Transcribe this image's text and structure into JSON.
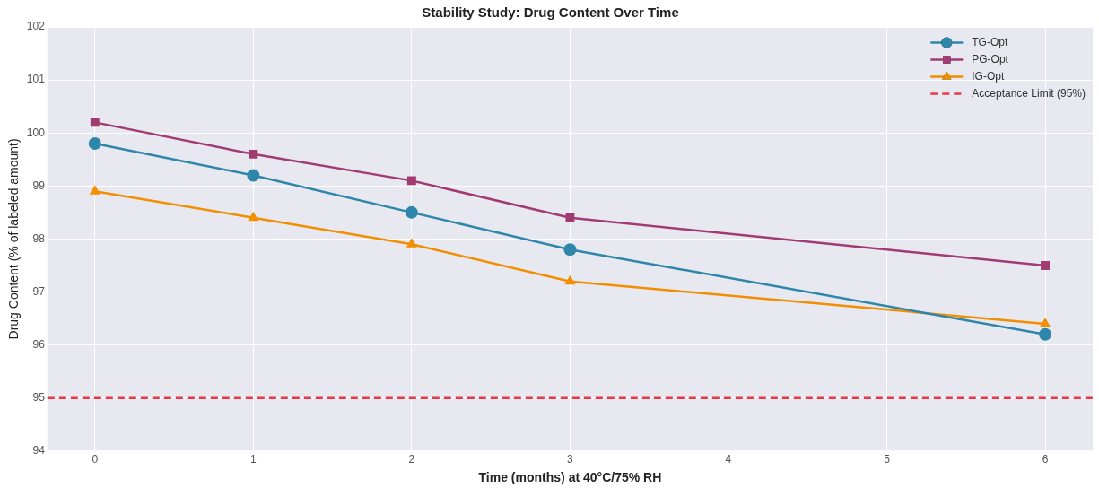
{
  "chart_data": {
    "type": "line",
    "title": "Stability Study: Drug Content Over Time",
    "xlabel": "Time (months) at 40°C/75% RH",
    "ylabel": "Drug Content (% of labeled amount)",
    "x": [
      0,
      1,
      2,
      3,
      6
    ],
    "series": [
      {
        "name": "TG-Opt",
        "color": "#2e86ab",
        "marker": "circle",
        "values": [
          99.8,
          99.2,
          98.5,
          97.8,
          96.2
        ]
      },
      {
        "name": "PG-Opt",
        "color": "#a23b72",
        "marker": "square",
        "values": [
          100.2,
          99.6,
          99.1,
          98.4,
          97.5
        ]
      },
      {
        "name": "IG-Opt",
        "color": "#f18f01",
        "marker": "triangle",
        "values": [
          98.9,
          98.4,
          97.9,
          97.2,
          96.4
        ]
      }
    ],
    "ref_lines": [
      {
        "axis": "y",
        "value": 95,
        "label": "Acceptance Limit (95%)",
        "color": "#e63946",
        "line_style": "dashed"
      }
    ],
    "xlim": [
      -0.3,
      6.3
    ],
    "ylim": [
      94,
      102
    ],
    "xticks": [
      0,
      1,
      2,
      3,
      4,
      5,
      6
    ],
    "yticks": [
      94,
      95,
      96,
      97,
      98,
      99,
      100,
      101,
      102
    ],
    "grid": true,
    "legend": "top right",
    "line_style": "solid"
  }
}
